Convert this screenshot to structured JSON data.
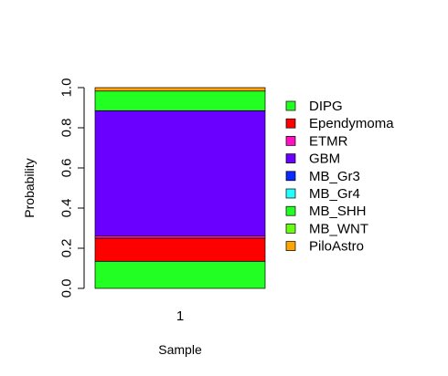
{
  "chart_data": {
    "type": "bar",
    "stacked": true,
    "title": "",
    "xlabel": "Sample",
    "ylabel": "Probability",
    "categories": [
      "1"
    ],
    "ylim": [
      0,
      1
    ],
    "y_ticks": [
      "0.0",
      "0.2",
      "0.4",
      "0.6",
      "0.8",
      "1.0"
    ],
    "grid": false,
    "legend": {
      "position": "right"
    },
    "series": [
      {
        "name": "DIPG",
        "color": "#22FF22",
        "values": [
          0.135
        ]
      },
      {
        "name": "Ependymoma",
        "color": "#FF0000",
        "values": [
          0.115
        ]
      },
      {
        "name": "ETMR",
        "color": "#FF10C0",
        "values": [
          0.012
        ]
      },
      {
        "name": "GBM",
        "color": "#6A00FF",
        "values": [
          0.623
        ]
      },
      {
        "name": "MB_Gr3",
        "color": "#0A2BFF",
        "values": [
          0.0
        ]
      },
      {
        "name": "MB_Gr4",
        "color": "#22FFFF",
        "values": [
          0.0
        ]
      },
      {
        "name": "MB_SHH",
        "color": "#22FF22",
        "values": [
          0.098
        ]
      },
      {
        "name": "MB_WNT",
        "color": "#66FF11",
        "values": [
          0.0
        ]
      },
      {
        "name": "PiloAstro",
        "color": "#FFA500",
        "values": [
          0.017
        ]
      }
    ]
  }
}
